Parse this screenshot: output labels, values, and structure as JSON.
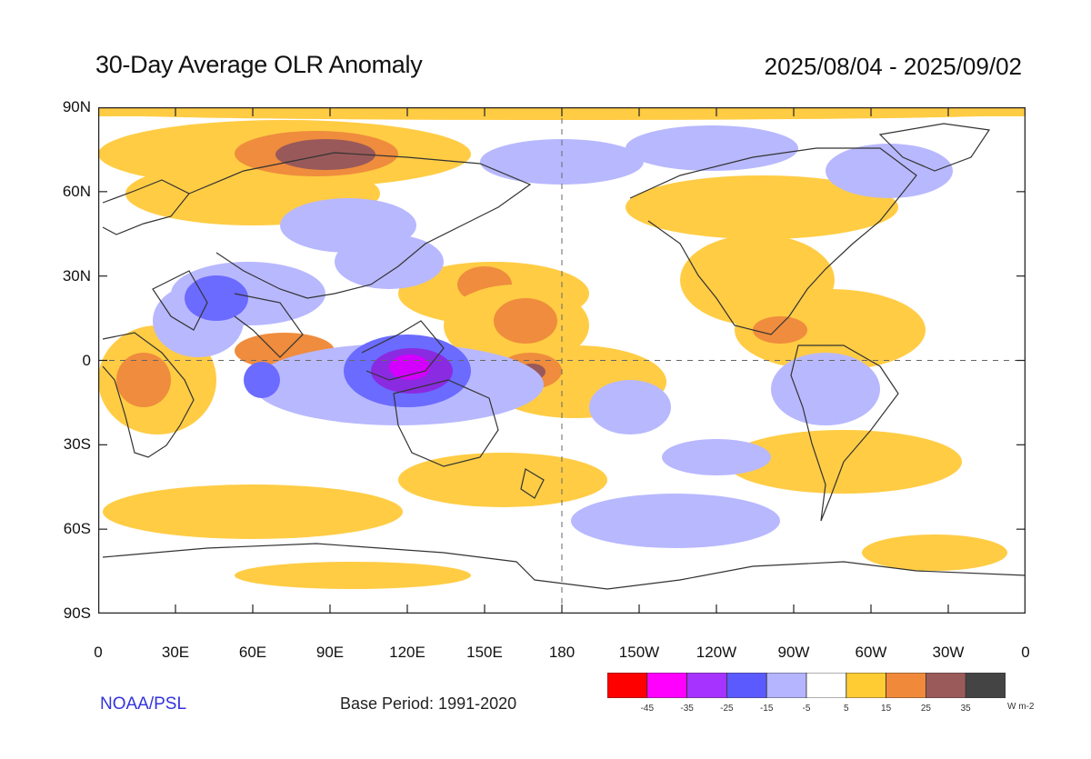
{
  "header": {
    "title": "30-Day Average OLR Anomaly",
    "date_range": "2025/08/04 - 2025/09/02"
  },
  "axes": {
    "lat_labels": [
      "90N",
      "60N",
      "30N",
      "0",
      "30S",
      "60S",
      "90S"
    ],
    "lon_labels": [
      "0",
      "30E",
      "60E",
      "90E",
      "120E",
      "150E",
      "180",
      "150W",
      "120W",
      "90W",
      "60W",
      "30W",
      "0"
    ]
  },
  "footer": {
    "credit": "NOAA/PSL",
    "base_period": "Base Period: 1991-2020",
    "units": "W m-2"
  },
  "colorbar": {
    "colors": [
      "#ff0000",
      "#ff00ff",
      "#a633ff",
      "#5a5aff",
      "#b4b4ff",
      "#ffffff",
      "#ffcc33",
      "#f08a3a",
      "#9a5a5a",
      "#444444"
    ],
    "ticks": [
      "-45",
      "-35",
      "-25",
      "-15",
      "-5",
      "5",
      "15",
      "25",
      "35"
    ]
  },
  "palette": {
    "pos1": "#ffcc44",
    "pos2": "#ef8c3d",
    "pos3": "#99595a",
    "neg1": "#b8b8ff",
    "neg2": "#6b6bff",
    "neg3": "#8a2be2",
    "neg4": "#d400ff"
  }
}
